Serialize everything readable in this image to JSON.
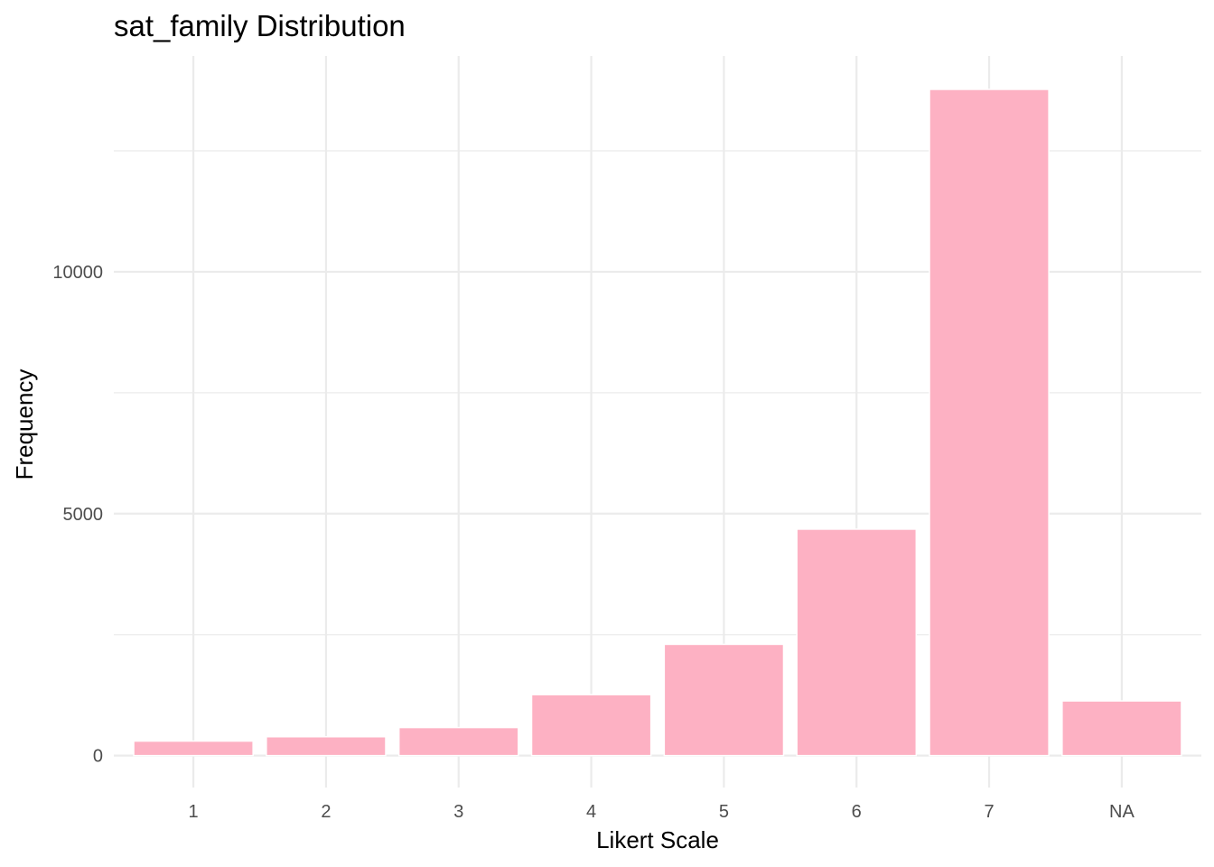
{
  "chart_data": {
    "type": "bar",
    "title": "sat_family Distribution",
    "xlabel": "Likert Scale",
    "ylabel": "Frequency",
    "categories": [
      "1",
      "2",
      "3",
      "4",
      "5",
      "6",
      "7",
      "NA"
    ],
    "values": [
      300,
      390,
      580,
      1260,
      2300,
      4680,
      13770,
      1130
    ],
    "y_ticks": [
      0,
      5000,
      10000
    ],
    "y_tick_labels": [
      "0",
      "5000",
      "10000"
    ],
    "ylim": [
      -660,
      14460
    ],
    "grid": true,
    "legend": "none",
    "colors": {
      "bar_fill": "#FDB1C3",
      "bar_outline": "#ffffff",
      "grid_major": "#EBEBEB",
      "grid_minor": "#EBEBEB",
      "background": "#ffffff"
    }
  }
}
